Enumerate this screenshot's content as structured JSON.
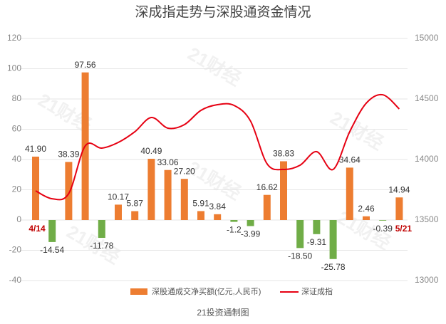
{
  "chart_data": {
    "type": "bar_line",
    "title": "深成指走势与深股通资金情况",
    "footer": "21投资通制图",
    "watermark": "21财经",
    "categories": [
      "4/14",
      null,
      null,
      null,
      null,
      null,
      null,
      null,
      null,
      null,
      null,
      null,
      null,
      null,
      null,
      null,
      null,
      null,
      null,
      null,
      null,
      null,
      "5/21"
    ],
    "series": [
      {
        "name": "深股通成交净买额(亿元,人民币)",
        "type": "bar",
        "color": "#ed7d31",
        "negative_color": "#70ad47",
        "values": [
          41.9,
          -14.54,
          38.39,
          97.56,
          -11.78,
          10.17,
          5.87,
          40.49,
          33.06,
          27.2,
          5.91,
          3.84,
          -1.2,
          -3.99,
          16.62,
          38.83,
          -18.5,
          -9.31,
          -25.78,
          34.64,
          2.46,
          -0.39,
          14.94
        ],
        "value_labels": [
          "41.90",
          "-14.54",
          "38.39",
          "97.56",
          "-11.78",
          "10.17",
          "5.87",
          "40.49",
          "33.06",
          "27.20",
          "5.91",
          "3.84",
          "-1.2",
          "-3.99",
          "16.62",
          "38.83",
          "-18.50",
          "-9.31",
          "-25.78",
          "34.64",
          "2.46",
          "-0.39",
          "14.94"
        ]
      },
      {
        "name": "深证成指",
        "type": "line",
        "axis": "y2",
        "color": "#e60012",
        "values": [
          13741,
          13676,
          13718,
          14112,
          14094,
          14141,
          14229,
          14347,
          14259,
          14288,
          14406,
          14453,
          14447,
          14318,
          13965,
          13918,
          13953,
          14065,
          13918,
          14229,
          14465,
          14535,
          14418
        ]
      }
    ],
    "ylim": [
      -40,
      120
    ],
    "yticks": [
      -40,
      -20,
      0,
      20,
      40,
      60,
      80,
      100,
      120
    ],
    "y2lim": [
      13000,
      15000
    ],
    "y2ticks": [
      13000,
      13500,
      14000,
      14500,
      15000
    ],
    "grid": true,
    "legend": "bottom"
  }
}
